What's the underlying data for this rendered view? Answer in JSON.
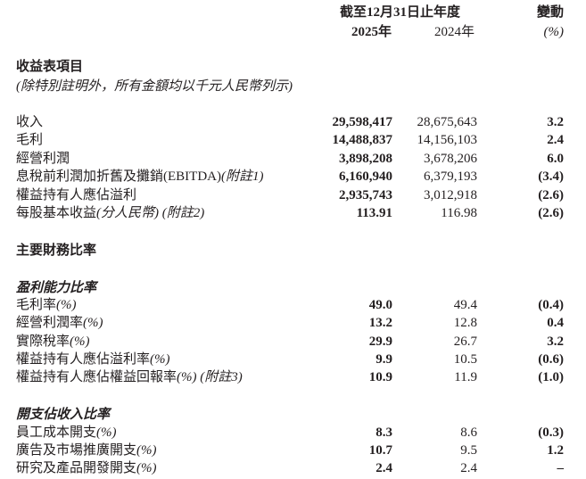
{
  "header": {
    "period": "截至12月31日止年度",
    "change": "變動",
    "year_current": "2025年",
    "year_prior": "2024年",
    "change_unit": "(%)"
  },
  "income": {
    "title": "收益表項目",
    "subtitle": "(除特別註明外，所有金額均以千元人民幣列示)",
    "rows": [
      {
        "label": "收入",
        "note": "",
        "cur": "29,598,417",
        "prior": "28,675,643",
        "chg": "3.2"
      },
      {
        "label": "毛利",
        "note": "",
        "cur": "14,488,837",
        "prior": "14,156,103",
        "chg": "2.4"
      },
      {
        "label": "經營利潤",
        "note": "",
        "cur": "3,898,208",
        "prior": "3,678,206",
        "chg": "6.0"
      },
      {
        "label": "息稅前利潤加折舊及攤銷(EBITDA)",
        "note": "(附註1)",
        "cur": "6,160,940",
        "prior": "6,379,193",
        "chg": "(3.4)"
      },
      {
        "label": "權益持有人應佔溢利",
        "note": "",
        "cur": "2,935,743",
        "prior": "3,012,918",
        "chg": "(2.6)"
      },
      {
        "label": "每股基本收益",
        "note": "(分人民幣) (附註2)",
        "cur": "113.91",
        "prior": "116.98",
        "chg": "(2.6)"
      }
    ]
  },
  "ratios": {
    "title": "主要財務比率",
    "profitability": {
      "title": "盈利能力比率",
      "rows": [
        {
          "label": "毛利率",
          "note": "(%)",
          "cur": "49.0",
          "prior": "49.4",
          "chg": "(0.4)"
        },
        {
          "label": "經營利潤率",
          "note": "(%)",
          "cur": "13.2",
          "prior": "12.8",
          "chg": "0.4"
        },
        {
          "label": "實際稅率",
          "note": "(%)",
          "cur": "29.9",
          "prior": "26.7",
          "chg": "3.2"
        },
        {
          "label": "權益持有人應佔溢利率",
          "note": "(%)",
          "cur": "9.9",
          "prior": "10.5",
          "chg": "(0.6)"
        },
        {
          "label": "權益持有人應佔權益回報率",
          "note": "(%) (附註3)",
          "cur": "10.9",
          "prior": "11.9",
          "chg": "(1.0)"
        }
      ]
    },
    "expenses": {
      "title": "開支佔收入比率",
      "rows": [
        {
          "label": "員工成本開支",
          "note": "(%)",
          "cur": "8.3",
          "prior": "8.6",
          "chg": "(0.3)"
        },
        {
          "label": "廣告及市場推廣開支",
          "note": "(%)",
          "cur": "10.7",
          "prior": "9.5",
          "chg": "1.2"
        },
        {
          "label": "研究及產品開發開支",
          "note": "(%)",
          "cur": "2.4",
          "prior": "2.4",
          "chg": "–"
        }
      ]
    }
  }
}
